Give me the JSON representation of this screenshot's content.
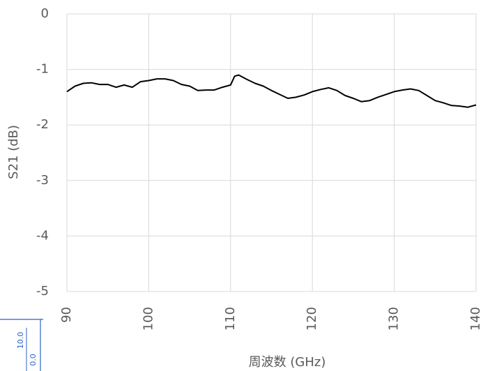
{
  "chart_data": {
    "type": "line",
    "x_label": "周波数 (GHz)",
    "y_label": "S21 (dB)",
    "x": [
      90,
      91,
      92,
      93,
      94,
      95,
      96,
      97,
      98,
      99,
      100,
      101,
      102,
      103,
      104,
      105,
      106,
      107,
      108,
      109,
      110,
      110.5,
      111,
      112,
      113,
      114,
      115,
      116,
      117,
      118,
      119,
      120,
      121,
      122,
      123,
      124,
      125,
      126,
      127,
      128,
      129,
      130,
      131,
      132,
      133,
      134,
      135,
      136,
      137,
      138,
      139,
      140
    ],
    "series": [
      {
        "name": "S21",
        "color": "#000000",
        "values": [
          -1.4,
          -1.3,
          -1.25,
          -1.24,
          -1.27,
          -1.27,
          -1.32,
          -1.28,
          -1.32,
          -1.22,
          -1.2,
          -1.17,
          -1.17,
          -1.2,
          -1.27,
          -1.3,
          -1.38,
          -1.37,
          -1.37,
          -1.32,
          -1.28,
          -1.12,
          -1.1,
          -1.18,
          -1.25,
          -1.3,
          -1.38,
          -1.45,
          -1.52,
          -1.5,
          -1.46,
          -1.4,
          -1.36,
          -1.33,
          -1.38,
          -1.47,
          -1.52,
          -1.58,
          -1.56,
          -1.5,
          -1.45,
          -1.4,
          -1.37,
          -1.35,
          -1.38,
          -1.47,
          -1.56,
          -1.6,
          -1.65,
          -1.66,
          -1.68,
          -1.64
        ]
      }
    ],
    "xlim": [
      90,
      140
    ],
    "xticks": [
      90,
      100,
      110,
      120,
      130,
      140
    ],
    "ylim": [
      -5,
      0
    ],
    "yticks": [
      -5,
      -4,
      -3,
      -2,
      -1,
      0
    ],
    "grid": true
  },
  "fragment": {
    "labels": [
      "10.0",
      "0.0"
    ]
  }
}
